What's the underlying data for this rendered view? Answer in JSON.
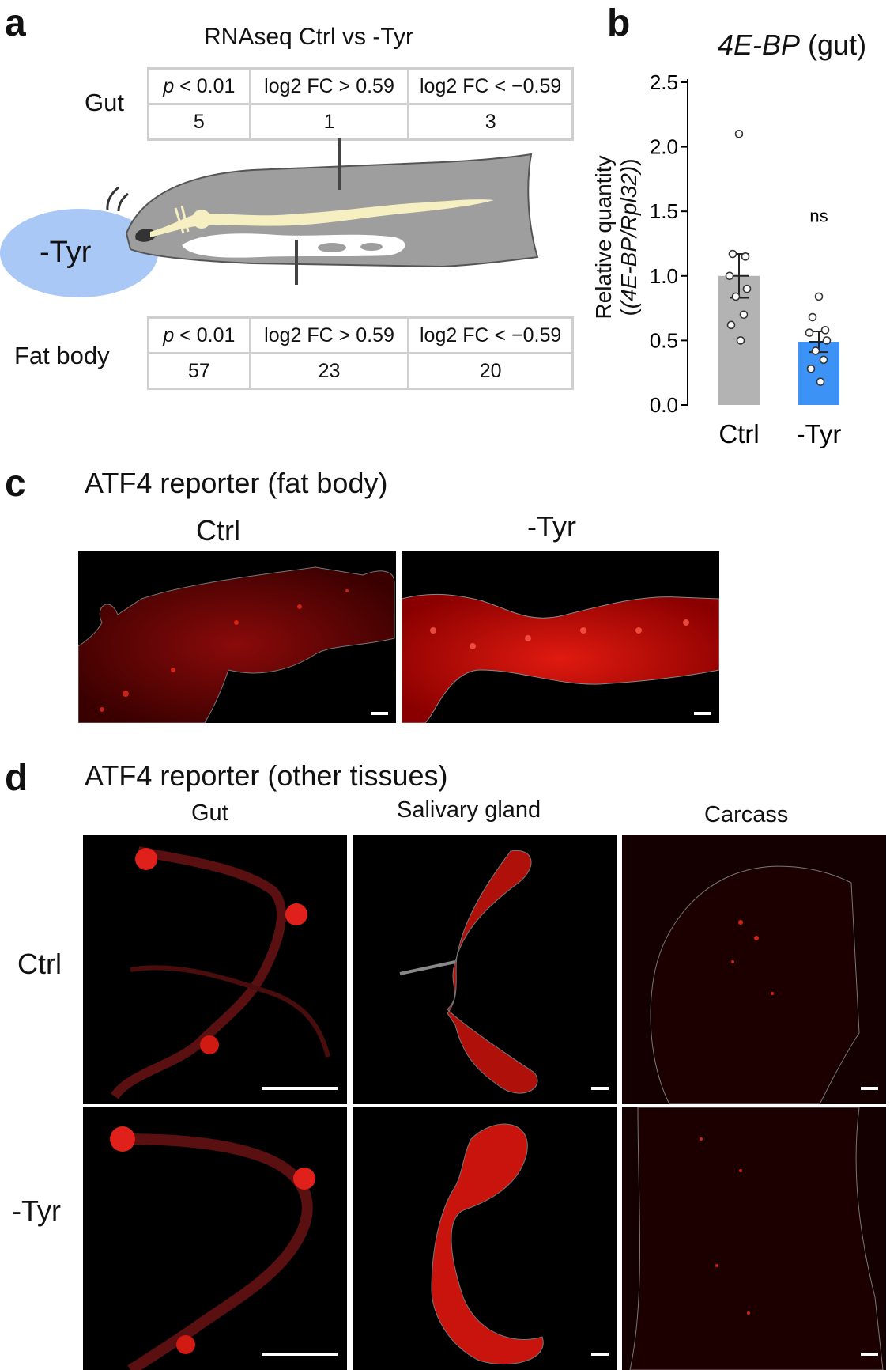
{
  "panel_a": {
    "label": "a",
    "title": "RNAseq   Ctrl vs -Tyr",
    "condition_label": "-Tyr",
    "gut": {
      "row_label": "Gut",
      "headers": [
        "p",
        " < 0.01",
        "log2 FC > 0.59",
        "log2 FC < −0.59"
      ],
      "values": [
        "5",
        "1",
        "3"
      ]
    },
    "fat_body": {
      "row_label": "Fat body",
      "headers": [
        "p",
        " < 0.01",
        "log2 FC > 0.59",
        "log2 FC < −0.59"
      ],
      "values": [
        "57",
        "23",
        "20"
      ]
    }
  },
  "panel_b": {
    "label": "b",
    "title_italic": "4E-BP",
    "title_rest": " (gut)",
    "ylabel_line1": "Relative quantity",
    "ylabel_line2": "(4E-BP/Rpl32)",
    "significance": "ns"
  },
  "chart_data": {
    "type": "bar",
    "categories": [
      "Ctrl",
      "-Tyr"
    ],
    "values": [
      1.0,
      0.49
    ],
    "errors": [
      0.17,
      0.08
    ],
    "points": [
      [
        2.1,
        1.17,
        1.15,
        1.0,
        0.9,
        0.84,
        0.7,
        0.62,
        0.5
      ],
      [
        0.84,
        0.68,
        0.58,
        0.56,
        0.5,
        0.42,
        0.35,
        0.28,
        0.18
      ]
    ],
    "bar_colors": [
      "#b3b3b3",
      "#3d93f5"
    ],
    "ylim": [
      0,
      2.5
    ],
    "yticks": [
      "0.0",
      "0.5",
      "1.0",
      "1.5",
      "2.0",
      "2.5"
    ],
    "ytick_values": [
      0,
      0.5,
      1.0,
      1.5,
      2.0,
      2.5
    ]
  },
  "panel_c": {
    "label": "c",
    "title": "ATF4 reporter  (fat body)",
    "col_labels": [
      "Ctrl",
      "-Tyr"
    ]
  },
  "panel_d": {
    "label": "d",
    "title": "ATF4 reporter  (other tissues)",
    "col_labels": [
      "Gut",
      "Salivary gland",
      "Carcass"
    ],
    "row_labels": [
      "Ctrl",
      "-Tyr"
    ]
  }
}
